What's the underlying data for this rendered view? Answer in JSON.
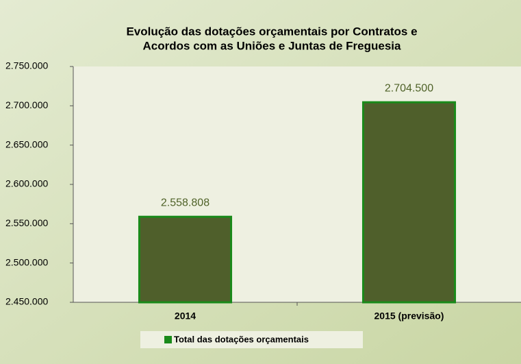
{
  "chart_data": {
    "type": "bar",
    "title": [
      "Evolução das dotações orçamentais por Contratos e",
      "Acordos com as Uniões e Juntas de Freguesia"
    ],
    "categories": [
      "2014",
      "2015 (previsão)"
    ],
    "series": [
      {
        "name": "Total das dotações orçamentais",
        "color": "#4f5f2b",
        "edge_color": "#1a8a1a",
        "values": [
          2558808,
          2704500
        ],
        "value_labels": [
          "2.558.808",
          "2.704.500"
        ]
      }
    ],
    "ylim": [
      2450000,
      2750000
    ],
    "yticks": [
      {
        "value": 2450000,
        "label": "2.450.000"
      },
      {
        "value": 2500000,
        "label": "2.500.000"
      },
      {
        "value": 2550000,
        "label": "2.550.000"
      },
      {
        "value": 2600000,
        "label": "2.600.000"
      },
      {
        "value": 2650000,
        "label": "2.650.000"
      },
      {
        "value": 2700000,
        "label": "2.700.000"
      },
      {
        "value": 2750000,
        "label": "2.750.000"
      }
    ],
    "grid": false,
    "legend": "bottom"
  }
}
